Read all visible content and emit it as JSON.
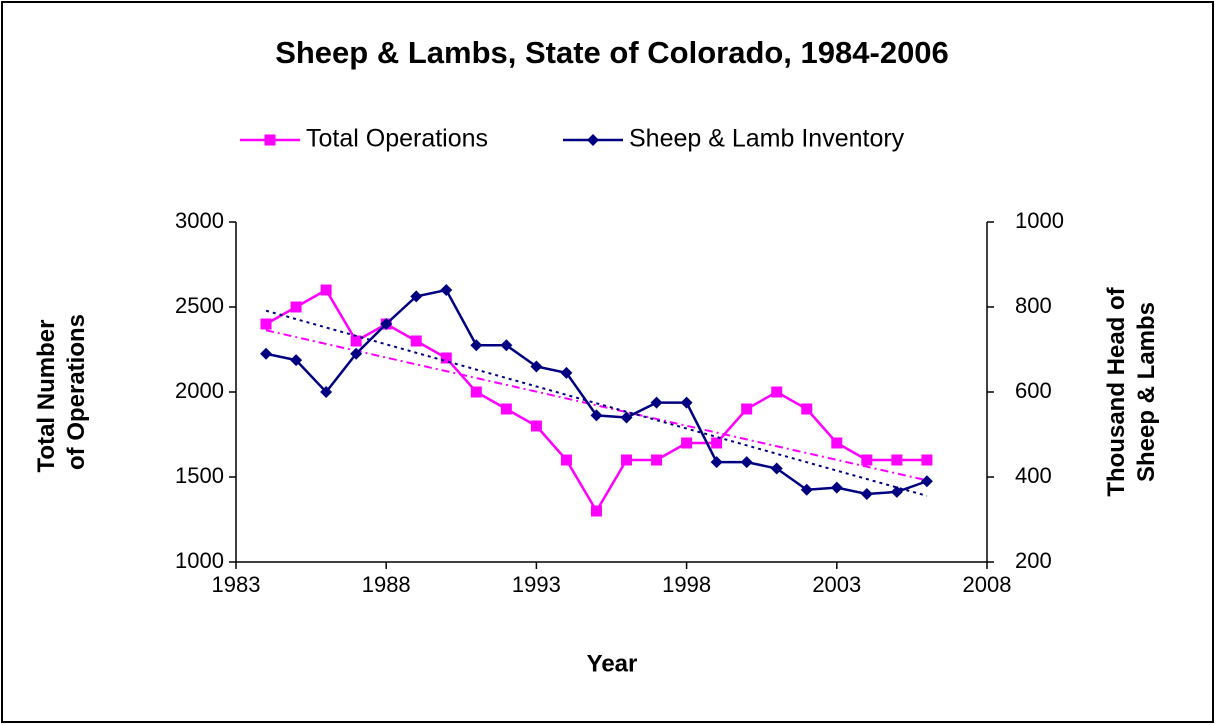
{
  "chart_data": {
    "type": "line",
    "title": "Sheep & Lambs, State of Colorado, 1984-2006",
    "x_label": "Year",
    "y_label": "Total Number of Operations",
    "y2_label": "Thousand Head of Sheep & Lambs",
    "x": [
      1984,
      1985,
      1986,
      1987,
      1988,
      1989,
      1990,
      1991,
      1992,
      1993,
      1994,
      1995,
      1996,
      1997,
      1998,
      1999,
      2000,
      2001,
      2002,
      2003,
      2004,
      2005,
      2006
    ],
    "series": [
      {
        "name": "Total Operations",
        "color": "#ff00ff",
        "marker": "square",
        "values": [
          2400,
          2500,
          2600,
          2300,
          2400,
          2300,
          2200,
          2000,
          1900,
          1800,
          1600,
          1300,
          1600,
          1600,
          1700,
          1700,
          1900,
          2000,
          1900,
          1700,
          1600,
          1600,
          1600
        ]
      },
      {
        "name": "Sheep & Lamb Inventory",
        "color": "#000080",
        "marker": "diamond",
        "axis": "y2",
        "values": [
          690,
          675,
          600,
          690,
          760,
          825,
          840,
          710,
          710,
          660,
          645,
          545,
          540,
          575,
          575,
          435,
          435,
          420,
          370,
          375,
          360,
          365,
          390
        ]
      }
    ],
    "trendline": true,
    "legend": "top",
    "xlim": [
      1983,
      2008
    ],
    "xticks": [
      1983,
      1988,
      1993,
      1998,
      2003,
      2008
    ],
    "ylim": [
      1000,
      3000
    ],
    "yticks": [
      1000,
      1500,
      2000,
      2500,
      3000
    ],
    "y2lim": [
      200,
      1000
    ],
    "y2ticks": [
      200,
      400,
      600,
      800,
      1000
    ]
  }
}
